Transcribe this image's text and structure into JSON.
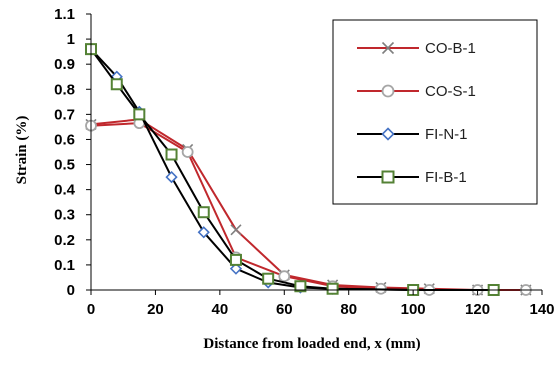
{
  "chart_data": {
    "type": "line",
    "title": "",
    "xlabel": "Distance from loaded end, x (mm)",
    "ylabel": "Strain (%)",
    "xlim": [
      0,
      140
    ],
    "ylim": [
      0,
      1.1
    ],
    "xticks": [
      0,
      20,
      40,
      60,
      80,
      100,
      120,
      140
    ],
    "yticks": [
      0,
      0.1,
      0.2,
      0.3,
      0.4,
      0.5,
      0.6,
      0.7,
      0.8,
      0.9,
      1,
      1.1
    ],
    "xtick_labels": [
      "0",
      "20",
      "40",
      "60",
      "80",
      "100",
      "120",
      "140"
    ],
    "ytick_labels": [
      "0",
      "0.1",
      "0.2",
      "0.3",
      "0.4",
      "0.5",
      "0.6",
      "0.7",
      "0.8",
      "0.9",
      "1",
      "1.1"
    ],
    "grid": false,
    "legend_position": "top-right",
    "series": [
      {
        "name": "CO-B-1",
        "color": "#c0282d",
        "marker": "x-mark",
        "x": [
          0,
          15,
          30,
          45,
          60,
          75,
          90,
          105,
          120,
          135
        ],
        "y": [
          0.66,
          0.68,
          0.56,
          0.24,
          0.06,
          0.02,
          0.01,
          0.005,
          0.0,
          0.0
        ]
      },
      {
        "name": "CO-S-1",
        "color": "#c0282d",
        "marker": "circle",
        "x": [
          0,
          15,
          30,
          45,
          60,
          75,
          90,
          105,
          120,
          135
        ],
        "y": [
          0.655,
          0.665,
          0.55,
          0.13,
          0.055,
          0.015,
          0.005,
          0.0,
          0.0,
          0.0
        ]
      },
      {
        "name": "FI-N-1",
        "color": "#000000",
        "marker": "diamond",
        "x": [
          0,
          8,
          15,
          25,
          35,
          45,
          55,
          65,
          75,
          100,
          125
        ],
        "y": [
          0.96,
          0.85,
          0.71,
          0.45,
          0.23,
          0.085,
          0.03,
          0.01,
          0.005,
          0.0,
          0.0
        ]
      },
      {
        "name": "FI-B-1",
        "color": "#000000",
        "marker": "square",
        "x": [
          0,
          8,
          15,
          25,
          35,
          45,
          55,
          65,
          75,
          100,
          125
        ],
        "y": [
          0.96,
          0.82,
          0.7,
          0.54,
          0.31,
          0.12,
          0.045,
          0.015,
          0.005,
          0.0,
          0.0
        ]
      }
    ],
    "marker_colors": {
      "x-mark": "#7f7f7f",
      "circle": "#a6a6a6",
      "diamond": "#4472c4",
      "square": "#548235"
    }
  }
}
